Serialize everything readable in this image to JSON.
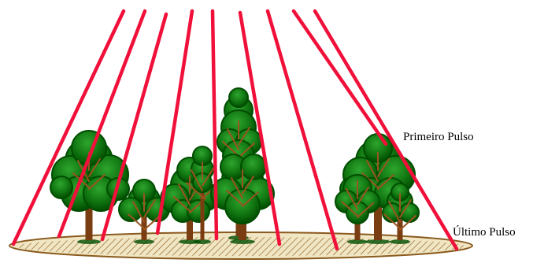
{
  "labels": {
    "first_pulse": "Primeiro Pulso",
    "last_pulse": "Último Pulso"
  },
  "colors": {
    "background": "#ffffff",
    "laser_beam": "#f0103a",
    "foliage_dark": "#004d00",
    "foliage_mid": "#137a13",
    "foliage_light": "#2ea52e",
    "trunk": "#7a3d12",
    "branch": "#9a5420",
    "ground_fill": "#f1e6c3",
    "ground_outline": "#8a5a1e"
  }
}
